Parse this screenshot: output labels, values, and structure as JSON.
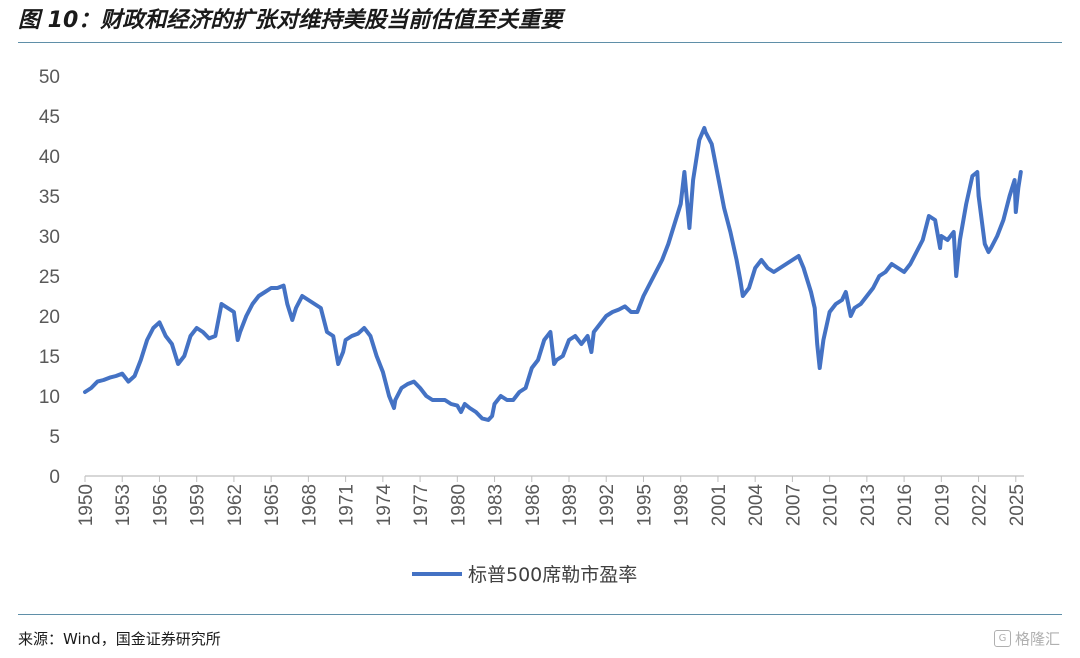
{
  "figure": {
    "title": "图 10：财政和经济的扩张对维持美股当前估值至关重要",
    "source": "来源：Wind，国金证券研究所",
    "watermark": "格隆汇"
  },
  "chart_data": {
    "type": "line",
    "title": "",
    "xlabel": "",
    "ylabel": "",
    "xlim": [
      1950,
      2025.5
    ],
    "ylim": [
      0,
      50
    ],
    "y_ticks": [
      "0",
      "5",
      "10",
      "15",
      "20",
      "25",
      "30",
      "35",
      "40",
      "45",
      "50"
    ],
    "x_ticks": [
      "1950",
      "1953",
      "1956",
      "1959",
      "1962",
      "1965",
      "1968",
      "1971",
      "1974",
      "1977",
      "1980",
      "1983",
      "1986",
      "1989",
      "1992",
      "1995",
      "1998",
      "2001",
      "2004",
      "2007",
      "2010",
      "2013",
      "2016",
      "2019",
      "2022",
      "2025"
    ],
    "grid": false,
    "legend_position": "bottom",
    "color": "#4472C4",
    "series": [
      {
        "name": "标普500席勒市盈率",
        "x": [
          1950.0,
          1950.5,
          1951.0,
          1951.5,
          1952.0,
          1952.5,
          1953.0,
          1953.5,
          1954.0,
          1954.5,
          1955.0,
          1955.5,
          1956.0,
          1956.5,
          1957.0,
          1957.5,
          1958.0,
          1958.5,
          1959.0,
          1959.5,
          1960.0,
          1960.5,
          1961.0,
          1961.5,
          1962.0,
          1962.3,
          1962.5,
          1963.0,
          1963.5,
          1964.0,
          1964.5,
          1965.0,
          1965.5,
          1966.0,
          1966.3,
          1966.7,
          1967.0,
          1967.5,
          1968.0,
          1968.5,
          1969.0,
          1969.5,
          1970.0,
          1970.4,
          1970.8,
          1971.0,
          1971.5,
          1972.0,
          1972.5,
          1973.0,
          1973.5,
          1974.0,
          1974.5,
          1974.9,
          1975.0,
          1975.5,
          1976.0,
          1976.5,
          1977.0,
          1977.5,
          1978.0,
          1978.5,
          1979.0,
          1979.5,
          1980.0,
          1980.3,
          1980.6,
          1981.0,
          1981.5,
          1982.0,
          1982.5,
          1982.8,
          1983.0,
          1983.5,
          1984.0,
          1984.5,
          1985.0,
          1985.5,
          1986.0,
          1986.5,
          1987.0,
          1987.5,
          1987.8,
          1988.0,
          1988.5,
          1989.0,
          1989.5,
          1990.0,
          1990.5,
          1990.8,
          1991.0,
          1991.5,
          1992.0,
          1992.5,
          1993.0,
          1993.5,
          1994.0,
          1994.5,
          1995.0,
          1995.5,
          1996.0,
          1996.5,
          1997.0,
          1997.5,
          1998.0,
          1998.3,
          1998.7,
          1999.0,
          1999.5,
          1999.9,
          2000.0,
          2000.5,
          2001.0,
          2001.5,
          2002.0,
          2002.5,
          2002.8,
          2003.0,
          2003.5,
          2004.0,
          2004.5,
          2005.0,
          2005.5,
          2006.0,
          2006.5,
          2007.0,
          2007.5,
          2007.9,
          2008.0,
          2008.5,
          2008.8,
          2009.0,
          2009.2,
          2009.5,
          2010.0,
          2010.5,
          2011.0,
          2011.3,
          2011.7,
          2012.0,
          2012.5,
          2013.0,
          2013.5,
          2014.0,
          2014.5,
          2015.0,
          2015.5,
          2016.0,
          2016.5,
          2017.0,
          2017.5,
          2018.0,
          2018.5,
          2018.9,
          2019.0,
          2019.5,
          2020.0,
          2020.2,
          2020.5,
          2021.0,
          2021.5,
          2021.9,
          2022.0,
          2022.5,
          2022.8,
          2023.0,
          2023.5,
          2024.0,
          2024.5,
          2024.9,
          2025.0,
          2025.2,
          2025.4
        ],
        "values": [
          10.5,
          11.0,
          11.8,
          12.0,
          12.3,
          12.5,
          12.8,
          11.8,
          12.5,
          14.5,
          17.0,
          18.5,
          19.2,
          17.5,
          16.5,
          14.0,
          15.0,
          17.5,
          18.5,
          18.0,
          17.2,
          17.5,
          21.5,
          21.0,
          20.5,
          17.0,
          18.0,
          20.0,
          21.5,
          22.5,
          23.0,
          23.5,
          23.5,
          23.8,
          21.5,
          19.5,
          21.0,
          22.5,
          22.0,
          21.5,
          21.0,
          18.0,
          17.5,
          14.0,
          15.5,
          17.0,
          17.5,
          17.8,
          18.5,
          17.5,
          15.0,
          13.0,
          10.0,
          8.5,
          9.5,
          11.0,
          11.5,
          11.8,
          11.0,
          10.0,
          9.5,
          9.5,
          9.5,
          9.0,
          8.8,
          8.0,
          9.0,
          8.5,
          8.0,
          7.2,
          7.0,
          7.5,
          9.0,
          10.0,
          9.5,
          9.5,
          10.5,
          11.0,
          13.5,
          14.5,
          17.0,
          18.0,
          14.0,
          14.5,
          15.0,
          17.0,
          17.5,
          16.5,
          17.5,
          15.5,
          18.0,
          19.0,
          20.0,
          20.5,
          20.8,
          21.2,
          20.5,
          20.5,
          22.5,
          24.0,
          25.5,
          27.0,
          29.0,
          31.5,
          34.0,
          38.0,
          31.0,
          37.0,
          42.0,
          43.5,
          43.0,
          41.5,
          37.5,
          33.5,
          30.5,
          27.0,
          24.5,
          22.5,
          23.5,
          26.0,
          27.0,
          26.0,
          25.5,
          26.0,
          26.5,
          27.0,
          27.5,
          26.0,
          25.5,
          23.0,
          21.0,
          16.5,
          13.5,
          17.0,
          20.5,
          21.5,
          22.0,
          23.0,
          20.0,
          21.0,
          21.5,
          22.5,
          23.5,
          25.0,
          25.5,
          26.5,
          26.0,
          25.5,
          26.5,
          28.0,
          29.5,
          32.5,
          32.0,
          28.5,
          30.0,
          29.5,
          30.5,
          25.0,
          29.5,
          34.0,
          37.5,
          38.0,
          35.0,
          29.0,
          28.0,
          28.5,
          30.0,
          32.0,
          35.0,
          37.0,
          33.0,
          36.0,
          38.0
        ]
      }
    ]
  }
}
